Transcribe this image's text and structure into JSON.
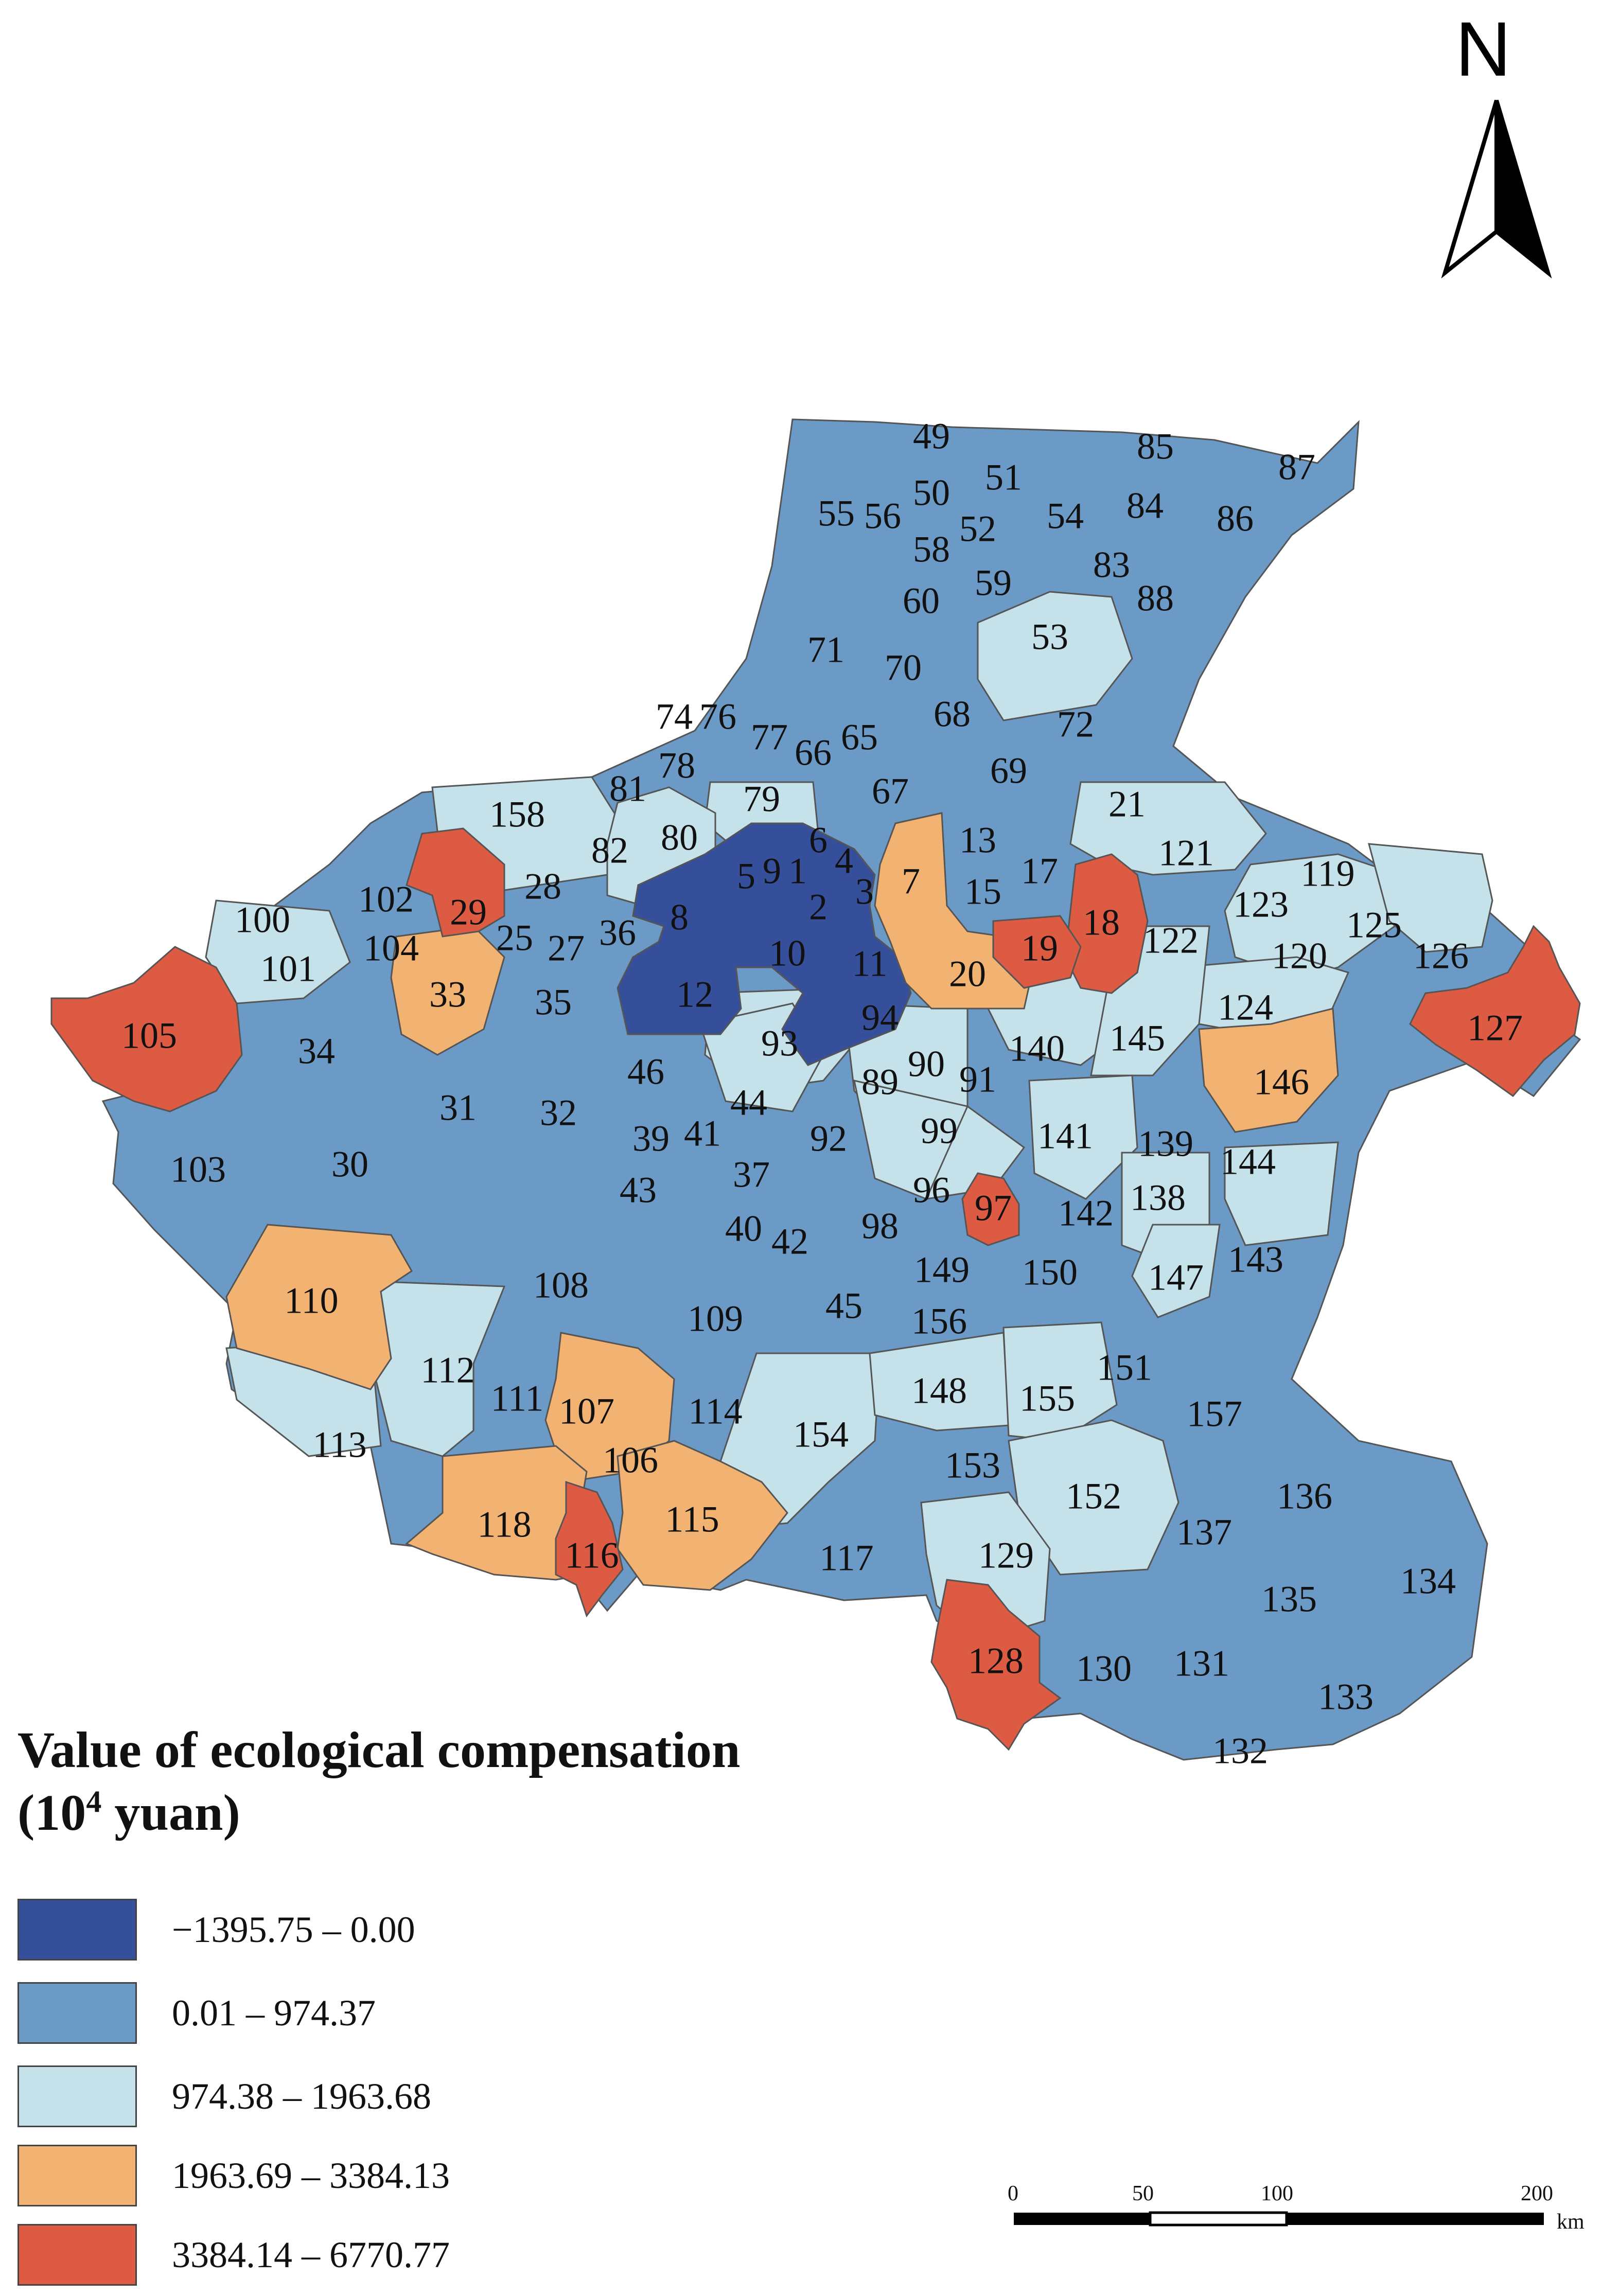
{
  "map": {
    "north_label": "N",
    "legend": {
      "title_line1": "Value of ecological compensation",
      "title_line2_base": "(10",
      "title_line2_sup": "4",
      "title_line2_rest": " yuan)",
      "items": [
        {
          "label": "−1395.75 – 0.00",
          "color": "#354f9a"
        },
        {
          "label": "0.01 – 974.37",
          "color": "#6a9ac5"
        },
        {
          "label": "974.38 – 1963.68",
          "color": "#c5e2ea"
        },
        {
          "label": "1963.69 – 3384.13",
          "color": "#f2b271"
        },
        {
          "label": "3384.14 – 6770.77",
          "color": "#dd5b42"
        }
      ]
    },
    "scale_bar": {
      "ticks": [
        "0",
        "50",
        "100",
        "200"
      ],
      "unit": "km"
    },
    "unit_labels": [
      "1",
      "2",
      "3",
      "4",
      "5",
      "6",
      "7",
      "8",
      "9",
      "10",
      "11",
      "12",
      "13",
      "15",
      "17",
      "18",
      "19",
      "20",
      "21",
      "25",
      "27",
      "28",
      "29",
      "30",
      "31",
      "32",
      "33",
      "34",
      "35",
      "36",
      "37",
      "39",
      "40",
      "41",
      "42",
      "43",
      "44",
      "45",
      "46",
      "49",
      "50",
      "51",
      "52",
      "53",
      "54",
      "55",
      "56",
      "58",
      "59",
      "60",
      "65",
      "66",
      "67",
      "68",
      "69",
      "70",
      "71",
      "72",
      "74",
      "76",
      "77",
      "78",
      "79",
      "80",
      "81",
      "82",
      "83",
      "84",
      "85",
      "86",
      "87",
      "88",
      "89",
      "90",
      "91",
      "92",
      "93",
      "94",
      "96",
      "97",
      "98",
      "99",
      "100",
      "101",
      "102",
      "103",
      "104",
      "105",
      "106",
      "107",
      "108",
      "109",
      "110",
      "111",
      "112",
      "113",
      "114",
      "115",
      "116",
      "117",
      "118",
      "119",
      "120",
      "121",
      "122",
      "123",
      "124",
      "125",
      "126",
      "127",
      "128",
      "129",
      "130",
      "131",
      "132",
      "133",
      "134",
      "135",
      "136",
      "137",
      "138",
      "139",
      "140",
      "141",
      "142",
      "143",
      "144",
      "145",
      "146",
      "147",
      "148",
      "149",
      "150",
      "151",
      "152",
      "153",
      "154",
      "155",
      "156",
      "157",
      "158"
    ]
  }
}
